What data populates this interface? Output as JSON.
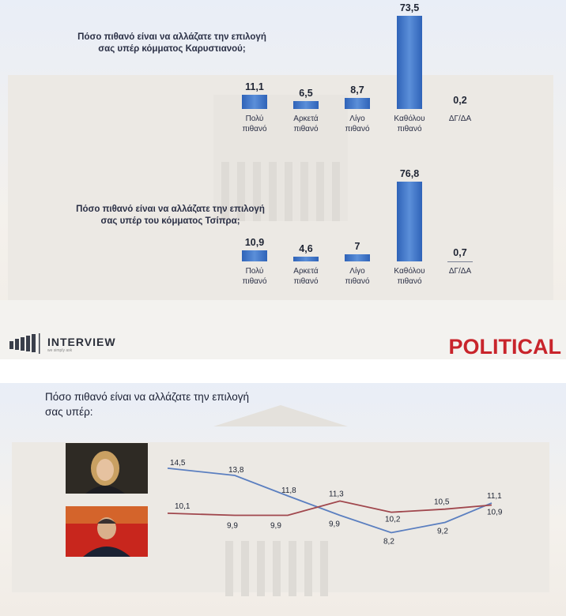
{
  "top": {
    "brand": "POLITICAL",
    "logo_text": "INTERVIEW",
    "logo_sub": "we simply ask"
  },
  "chart_data": [
    {
      "type": "bar",
      "title": "Πόσο πιθανό είναι να αλλάζατε την επιλογή σας υπέρ κόμματος Καρυστιανού;",
      "categories": [
        "Πολύ πιθανό",
        "Αρκετά πιθανό",
        "Λίγο πιθανό",
        "Καθόλου πιθανό",
        "ΔΓ/ΔΑ"
      ],
      "values": [
        11.1,
        6.5,
        8.7,
        73.5,
        0.2
      ],
      "value_labels": [
        "11,1",
        "6,5",
        "8,7",
        "73,5",
        "0,2"
      ],
      "bar_color": "#3b6fc4"
    },
    {
      "type": "bar",
      "title": "Πόσο πιθανό είναι να αλλάζατε την επιλογή σας υπέρ του κόμματος Τσίπρα;",
      "categories": [
        "Πολύ πιθανό",
        "Αρκετά πιθανό",
        "Λίγο πιθανό",
        "Καθόλου πιθανό",
        "ΔΓ/ΔΑ"
      ],
      "values": [
        10.9,
        4.6,
        7,
        76.8,
        0.7
      ],
      "value_labels": [
        "10,9",
        "4,6",
        "7",
        "76,8",
        "0,7"
      ],
      "bar_color": "#3b6fc4"
    },
    {
      "type": "line",
      "title": "Πόσο πιθανό είναι να αλλάζατε την επιλογή σας υπέρ:",
      "x": [
        1,
        2,
        3,
        4,
        5,
        6,
        7
      ],
      "series": [
        {
          "color": "#5b7fc0",
          "values": [
            14.5,
            13.8,
            11.8,
            9.9,
            8.2,
            9.2,
            11.1
          ],
          "value_labels": [
            "14,5",
            "13,8",
            "11,8",
            "9,9",
            "8,2",
            "9,2",
            "11,1"
          ]
        },
        {
          "color": "#a0474d",
          "values": [
            10.1,
            9.9,
            9.9,
            11.3,
            10.2,
            10.5,
            10.9
          ],
          "value_labels": [
            "10,1",
            "9,9",
            "9,9",
            "11,3",
            "10,2",
            "10,5",
            "10,9"
          ]
        }
      ],
      "ylim": [
        7,
        15.5
      ]
    }
  ]
}
